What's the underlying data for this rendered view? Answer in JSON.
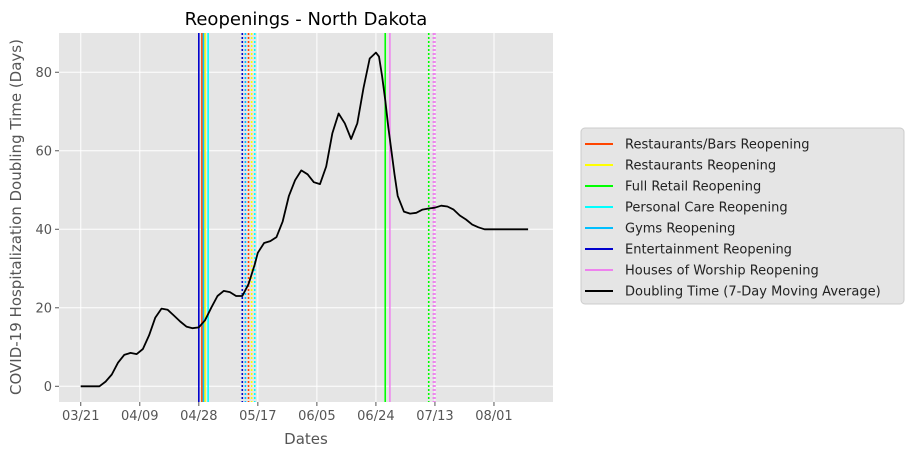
{
  "chart_data": {
    "type": "line",
    "title": "Reopenings - North Dakota",
    "xlabel": "Dates",
    "ylabel": "COVID-19 Hospitalization Doubling Time (Days)",
    "x_tick_labels": [
      "03/21",
      "04/09",
      "04/28",
      "05/17",
      "06/05",
      "06/24",
      "07/13",
      "08/01"
    ],
    "x_tick_days": [
      0,
      19,
      38,
      57,
      76,
      95,
      114,
      133
    ],
    "xlim_days": [
      -7,
      152
    ],
    "ylim": [
      -4,
      90
    ],
    "y_ticks": [
      0,
      20,
      40,
      60,
      80
    ],
    "grid": true,
    "legend_position": "right-outside",
    "series": [
      {
        "name": "Doubling Time (7-Day Moving Average)",
        "color": "#000000",
        "x_days": [
          0,
          2,
          4,
          6,
          8,
          10,
          12,
          14,
          16,
          18,
          20,
          22,
          24,
          26,
          28,
          30,
          32,
          34,
          36,
          38,
          40,
          42,
          44,
          46,
          48,
          50,
          52,
          54,
          56,
          57,
          59,
          61,
          63,
          65,
          67,
          69,
          71,
          73,
          75,
          77,
          79,
          81,
          83,
          85,
          87,
          89,
          91,
          93,
          95,
          96,
          97,
          98,
          99,
          100,
          101,
          102,
          104,
          106,
          108,
          110,
          112,
          114,
          116,
          118,
          120,
          122,
          124,
          126,
          128,
          130,
          132,
          134,
          136,
          138,
          140,
          142,
          144
        ],
        "y": [
          0,
          0,
          0,
          0,
          1.2,
          3,
          6,
          8,
          8.5,
          8.2,
          9.5,
          13,
          17.5,
          19.8,
          19.5,
          18,
          16.5,
          15.2,
          14.8,
          15,
          16.8,
          20,
          23,
          24.3,
          24,
          23,
          23,
          26,
          31,
          34,
          36.5,
          37,
          38,
          42,
          48.5,
          52.5,
          55,
          54,
          52,
          51.5,
          56,
          64.5,
          69.5,
          67,
          63,
          67,
          76,
          83.5,
          85,
          84,
          79,
          73,
          66,
          60,
          54,
          48.5,
          44.5,
          44,
          44.2,
          45,
          45.3,
          45.5,
          46,
          45.8,
          45,
          43.5,
          42.5,
          41.2,
          40.5,
          40,
          40,
          40,
          40,
          40,
          40,
          40,
          40
        ]
      }
    ],
    "reopening_lines": [
      {
        "name": "Restaurants/Bars Reopening",
        "color": "#ff4500",
        "day": 39,
        "style": "solid"
      },
      {
        "name": "Restaurants Reopening",
        "color": "#ffff00",
        "day": 40,
        "style": "solid"
      },
      {
        "name": "Full Retail Reopening",
        "color": "#00ff00",
        "day": 98,
        "style": "solid"
      },
      {
        "name": "Personal Care Reopening",
        "color": "#00ffff",
        "day": 41,
        "style": "solid"
      },
      {
        "name": "Gyms Reopening",
        "color": "#00bfff",
        "day": 39.5,
        "style": "solid"
      },
      {
        "name": "Entertainment Reopening",
        "color": "#0000cd",
        "day": 38,
        "style": "solid"
      },
      {
        "name": "Houses of Worship Reopening",
        "color": "#ee82ee",
        "day": 99.5,
        "style": "solid"
      },
      {
        "name": "Restaurants/Bars Reopening",
        "color": "#ff4500",
        "day": 54,
        "style": "dotted"
      },
      {
        "name": "Restaurants Reopening",
        "color": "#ffff00",
        "day": 55,
        "style": "dotted"
      },
      {
        "name": "Full Retail Reopening",
        "color": "#00ff00",
        "day": 112,
        "style": "dotted"
      },
      {
        "name": "Personal Care Reopening",
        "color": "#00ffff",
        "day": 56,
        "style": "dotted"
      },
      {
        "name": "Gyms Reopening",
        "color": "#00bfff",
        "day": 53,
        "style": "dotted"
      },
      {
        "name": "Entertainment Reopening",
        "color": "#0000cd",
        "day": 52,
        "style": "dotted"
      },
      {
        "name": "Houses of Worship Reopening",
        "color": "#ee82ee",
        "day": 113.5,
        "style": "dotted"
      },
      {
        "name": "Houses of Worship Reopening",
        "color": "#ee82ee",
        "day": 114,
        "style": "dotted"
      }
    ],
    "legend": [
      {
        "label": "Restaurants/Bars Reopening",
        "color": "#ff4500"
      },
      {
        "label": "Restaurants Reopening",
        "color": "#ffff00"
      },
      {
        "label": "Full Retail Reopening",
        "color": "#00ff00"
      },
      {
        "label": "Personal Care Reopening",
        "color": "#00ffff"
      },
      {
        "label": "Gyms Reopening",
        "color": "#00bfff"
      },
      {
        "label": "Entertainment Reopening",
        "color": "#0000cd"
      },
      {
        "label": "Houses of Worship Reopening",
        "color": "#ee82ee"
      },
      {
        "label": "Doubling Time (7-Day Moving Average)",
        "color": "#000000"
      }
    ]
  }
}
